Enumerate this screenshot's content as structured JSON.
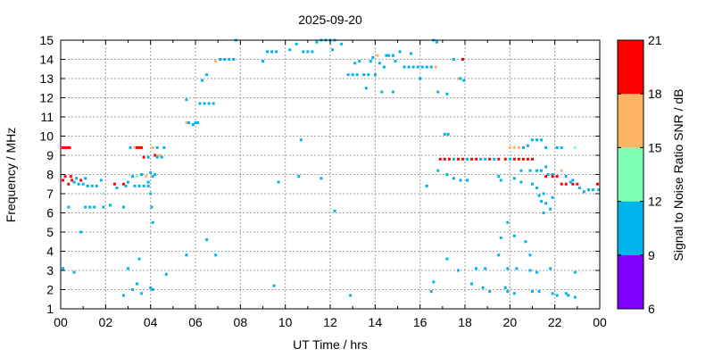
{
  "chart_data": {
    "type": "scatter",
    "title": "2025-09-20",
    "xlabel": "UT Time / hrs",
    "ylabel": "Frequency / MHz",
    "xlim": [
      0,
      24
    ],
    "ylim": [
      1,
      15
    ],
    "x_ticks": [
      "00",
      "02",
      "04",
      "06",
      "08",
      "10",
      "12",
      "14",
      "16",
      "18",
      "20",
      "22",
      "00"
    ],
    "y_ticks": [
      "1",
      "2",
      "3",
      "4",
      "5",
      "6",
      "7",
      "8",
      "9",
      "10",
      "11",
      "12",
      "13",
      "14",
      "15"
    ],
    "grid": true,
    "colorbar": {
      "label": "Signal to Noise Ratio SNR / dB",
      "ticks": [
        "6",
        "9",
        "12",
        "15",
        "18",
        "21"
      ],
      "bands": [
        {
          "min": 6,
          "max": 9,
          "color": "#8000ff"
        },
        {
          "min": 9,
          "max": 12,
          "color": "#00b4eb"
        },
        {
          "min": 12,
          "max": 15,
          "color": "#80ffb4"
        },
        {
          "min": 15,
          "max": 18,
          "color": "#ffb464"
        },
        {
          "min": 18,
          "max": 21,
          "color": "#ff0000"
        }
      ]
    },
    "point_colors": {
      "b": "#00b4eb",
      "g": "#80ffb4",
      "o": "#ffb464",
      "r": "#ff0000"
    },
    "points": [
      [
        0.1,
        3.1,
        "b"
      ],
      [
        0.6,
        2.9,
        "b"
      ],
      [
        0.9,
        5.0,
        "b"
      ],
      [
        0.35,
        6.3,
        "b"
      ],
      [
        1.1,
        6.3,
        "b"
      ],
      [
        1.3,
        6.3,
        "b"
      ],
      [
        1.5,
        6.3,
        "b"
      ],
      [
        1.9,
        6.3,
        "b"
      ],
      [
        2.2,
        6.4,
        "b"
      ],
      [
        2.8,
        6.3,
        "b"
      ],
      [
        0.1,
        7.7,
        "r"
      ],
      [
        0.2,
        7.9,
        "r"
      ],
      [
        0.35,
        7.5,
        "r"
      ],
      [
        0.5,
        7.7,
        "r"
      ],
      [
        0.6,
        7.6,
        "b"
      ],
      [
        0.7,
        7.8,
        "b"
      ],
      [
        0.8,
        7.5,
        "b"
      ],
      [
        0.9,
        7.7,
        "r"
      ],
      [
        1.0,
        7.5,
        "b"
      ],
      [
        1.1,
        7.8,
        "b"
      ],
      [
        1.2,
        7.4,
        "b"
      ],
      [
        1.4,
        7.4,
        "b"
      ],
      [
        1.6,
        7.4,
        "b"
      ],
      [
        1.8,
        7.7,
        "b"
      ],
      [
        1.9,
        7.0,
        "g"
      ],
      [
        2.4,
        7.5,
        "r"
      ],
      [
        2.5,
        7.3,
        "b"
      ],
      [
        2.8,
        7.5,
        "r"
      ],
      [
        2.9,
        7.4,
        "b"
      ],
      [
        3.0,
        7.6,
        "b"
      ],
      [
        0.1,
        9.4,
        "r"
      ],
      [
        0.2,
        9.4,
        "r"
      ],
      [
        0.3,
        9.4,
        "r"
      ],
      [
        0.4,
        9.4,
        "r"
      ],
      [
        0.45,
        7.9,
        "r"
      ],
      [
        3.1,
        9.4,
        "b"
      ],
      [
        3.3,
        9.4,
        "o"
      ],
      [
        3.4,
        9.4,
        "r"
      ],
      [
        3.5,
        9.4,
        "r"
      ],
      [
        3.6,
        9.4,
        "r"
      ],
      [
        3.7,
        8.9,
        "r"
      ],
      [
        3.9,
        8.9,
        "b"
      ],
      [
        4.1,
        9.4,
        "o"
      ],
      [
        4.3,
        9.4,
        "b"
      ],
      [
        4.2,
        9.0,
        "r"
      ],
      [
        4.3,
        8.9,
        "b"
      ],
      [
        4.4,
        9.0,
        "o"
      ],
      [
        4.5,
        8.9,
        "b"
      ],
      [
        4.6,
        9.4,
        "b"
      ],
      [
        3.2,
        7.9,
        "b"
      ],
      [
        3.4,
        7.9,
        "g"
      ],
      [
        3.6,
        8.0,
        "b"
      ],
      [
        3.8,
        7.9,
        "o"
      ],
      [
        3.9,
        7.6,
        "b"
      ],
      [
        4.0,
        8.1,
        "b"
      ],
      [
        4.1,
        7.9,
        "b"
      ],
      [
        4.2,
        8.0,
        "b"
      ],
      [
        3.3,
        7.4,
        "b"
      ],
      [
        3.5,
        7.4,
        "b"
      ],
      [
        3.7,
        7.4,
        "b"
      ],
      [
        3.9,
        7.4,
        "b"
      ],
      [
        4.0,
        7.0,
        "b"
      ],
      [
        4.05,
        6.3,
        "b"
      ],
      [
        4.1,
        5.5,
        "b"
      ],
      [
        2.8,
        1.7,
        "b"
      ],
      [
        3.0,
        3.1,
        "b"
      ],
      [
        3.2,
        2.0,
        "b"
      ],
      [
        3.4,
        2.3,
        "b"
      ],
      [
        3.6,
        1.8,
        "b"
      ],
      [
        3.5,
        3.6,
        "b"
      ],
      [
        4.0,
        2.1,
        "b"
      ],
      [
        4.1,
        2.0,
        "b"
      ],
      [
        4.7,
        2.8,
        "b"
      ],
      [
        5.6,
        3.8,
        "b"
      ],
      [
        6.5,
        4.6,
        "b"
      ],
      [
        6.9,
        3.8,
        "b"
      ],
      [
        5.6,
        11.9,
        "b"
      ],
      [
        5.6,
        10.7,
        "o"
      ],
      [
        5.7,
        10.7,
        "b"
      ],
      [
        5.9,
        10.6,
        "b"
      ],
      [
        6.0,
        10.7,
        "b"
      ],
      [
        6.1,
        10.7,
        "b"
      ],
      [
        6.2,
        11.7,
        "b"
      ],
      [
        6.4,
        11.7,
        "b"
      ],
      [
        6.6,
        11.7,
        "b"
      ],
      [
        6.8,
        11.7,
        "b"
      ],
      [
        6.3,
        12.9,
        "b"
      ],
      [
        6.5,
        13.2,
        "b"
      ],
      [
        6.9,
        13.9,
        "o"
      ],
      [
        7.1,
        14.0,
        "b"
      ],
      [
        7.3,
        14.0,
        "b"
      ],
      [
        7.5,
        14.0,
        "b"
      ],
      [
        7.7,
        14.0,
        "b"
      ],
      [
        7.8,
        15.0,
        "b"
      ],
      [
        9.0,
        13.9,
        "b"
      ],
      [
        9.2,
        14.4,
        "b"
      ],
      [
        9.4,
        14.4,
        "b"
      ],
      [
        9.6,
        14.4,
        "b"
      ],
      [
        10.2,
        14.5,
        "b"
      ],
      [
        10.5,
        14.8,
        "b"
      ],
      [
        10.8,
        14.4,
        "b"
      ],
      [
        11.0,
        14.4,
        "b"
      ],
      [
        11.2,
        14.4,
        "b"
      ],
      [
        11.4,
        14.9,
        "b"
      ],
      [
        11.6,
        15.0,
        "b"
      ],
      [
        11.8,
        15.0,
        "b"
      ],
      [
        12.0,
        15.0,
        "b"
      ],
      [
        12.2,
        15.0,
        "b"
      ],
      [
        12.1,
        14.5,
        "b"
      ],
      [
        12.5,
        14.8,
        "b"
      ],
      [
        12.8,
        13.2,
        "b"
      ],
      [
        13.0,
        13.2,
        "b"
      ],
      [
        13.2,
        13.2,
        "b"
      ],
      [
        13.1,
        13.8,
        "b"
      ],
      [
        13.3,
        13.9,
        "b"
      ],
      [
        13.5,
        13.2,
        "b"
      ],
      [
        13.6,
        12.5,
        "b"
      ],
      [
        13.7,
        13.2,
        "b"
      ],
      [
        13.8,
        13.9,
        "b"
      ],
      [
        13.9,
        14.1,
        "b"
      ],
      [
        14.0,
        13.2,
        "b"
      ],
      [
        14.1,
        14.2,
        "o"
      ],
      [
        14.2,
        13.8,
        "b"
      ],
      [
        14.4,
        13.6,
        "b"
      ],
      [
        14.5,
        14.2,
        "b"
      ],
      [
        14.6,
        14.2,
        "b"
      ],
      [
        14.8,
        14.2,
        "b"
      ],
      [
        14.9,
        13.9,
        "b"
      ],
      [
        15.1,
        14.4,
        "b"
      ],
      [
        15.3,
        13.6,
        "b"
      ],
      [
        15.5,
        13.6,
        "b"
      ],
      [
        15.7,
        13.6,
        "b"
      ],
      [
        15.9,
        13.6,
        "b"
      ],
      [
        16.1,
        13.6,
        "b"
      ],
      [
        16.3,
        13.6,
        "b"
      ],
      [
        16.5,
        13.6,
        "b"
      ],
      [
        16.7,
        13.6,
        "o"
      ],
      [
        15.6,
        14.3,
        "b"
      ],
      [
        14.3,
        12.3,
        "b"
      ],
      [
        14.8,
        12.3,
        "b"
      ],
      [
        16.0,
        13.0,
        "b"
      ],
      [
        16.8,
        12.3,
        "b"
      ],
      [
        16.6,
        15.0,
        "b"
      ],
      [
        16.75,
        14.9,
        "b"
      ],
      [
        17.5,
        14.0,
        "b"
      ],
      [
        17.7,
        13.0,
        "o"
      ],
      [
        17.8,
        13.0,
        "b"
      ],
      [
        17.9,
        14.0,
        "r"
      ],
      [
        17.95,
        12.9,
        "b"
      ],
      [
        17.2,
        12.2,
        "b"
      ],
      [
        10.7,
        9.8,
        "b"
      ],
      [
        10.6,
        7.9,
        "b"
      ],
      [
        9.7,
        7.6,
        "b"
      ],
      [
        11.6,
        7.8,
        "b"
      ],
      [
        12.2,
        6.1,
        "b"
      ],
      [
        12.9,
        1.7,
        "b"
      ],
      [
        9.5,
        2.2,
        "b"
      ],
      [
        16.3,
        7.4,
        "b"
      ],
      [
        16.8,
        8.2,
        "b"
      ],
      [
        16.9,
        8.8,
        "r"
      ],
      [
        17.1,
        8.8,
        "r"
      ],
      [
        17.3,
        8.8,
        "r"
      ],
      [
        17.5,
        8.8,
        "b"
      ],
      [
        17.7,
        8.8,
        "r"
      ],
      [
        17.9,
        8.8,
        "r"
      ],
      [
        18.1,
        8.8,
        "b"
      ],
      [
        18.3,
        8.8,
        "r"
      ],
      [
        18.5,
        8.8,
        "r"
      ],
      [
        18.7,
        8.8,
        "b"
      ],
      [
        18.9,
        8.8,
        "b"
      ],
      [
        19.1,
        8.8,
        "r"
      ],
      [
        19.3,
        8.8,
        "b"
      ],
      [
        19.5,
        8.8,
        "r"
      ],
      [
        17.1,
        10.1,
        "b"
      ],
      [
        17.25,
        10.1,
        "b"
      ],
      [
        17.2,
        8.0,
        "b"
      ],
      [
        17.5,
        7.8,
        "b"
      ],
      [
        17.8,
        7.7,
        "b"
      ],
      [
        18.1,
        7.7,
        "b"
      ],
      [
        19.6,
        7.7,
        "b"
      ],
      [
        20.0,
        9.4,
        "o"
      ],
      [
        20.2,
        9.4,
        "o"
      ],
      [
        20.4,
        9.4,
        "o"
      ],
      [
        20.6,
        9.4,
        "b"
      ],
      [
        20.8,
        9.5,
        "b"
      ],
      [
        21.0,
        9.8,
        "b"
      ],
      [
        21.2,
        9.8,
        "b"
      ],
      [
        21.4,
        9.8,
        "b"
      ],
      [
        21.6,
        9.4,
        "b"
      ],
      [
        22.1,
        9.4,
        "b"
      ],
      [
        22.3,
        9.4,
        "b"
      ],
      [
        22.9,
        9.4,
        "g"
      ],
      [
        19.8,
        8.8,
        "r"
      ],
      [
        20.0,
        8.8,
        "b"
      ],
      [
        20.2,
        8.8,
        "r"
      ],
      [
        20.4,
        8.8,
        "r"
      ],
      [
        20.6,
        8.8,
        "r"
      ],
      [
        20.8,
        8.8,
        "r"
      ],
      [
        21.0,
        8.8,
        "r"
      ],
      [
        20.5,
        8.2,
        "b"
      ],
      [
        20.9,
        8.2,
        "b"
      ],
      [
        21.2,
        8.2,
        "b"
      ],
      [
        21.4,
        8.2,
        "b"
      ],
      [
        21.6,
        8.4,
        "b"
      ],
      [
        21.7,
        8.0,
        "b"
      ],
      [
        21.9,
        8.0,
        "b"
      ],
      [
        21.6,
        7.9,
        "r"
      ],
      [
        21.9,
        7.9,
        "r"
      ],
      [
        22.1,
        7.9,
        "r"
      ],
      [
        22.3,
        8.2,
        "o"
      ],
      [
        22.5,
        7.9,
        "b"
      ],
      [
        22.8,
        7.7,
        "b"
      ],
      [
        22.3,
        7.5,
        "r"
      ],
      [
        22.5,
        7.5,
        "r"
      ],
      [
        22.8,
        7.5,
        "r"
      ],
      [
        23.0,
        7.5,
        "r"
      ],
      [
        23.1,
        7.3,
        "b"
      ],
      [
        23.3,
        7.1,
        "b"
      ],
      [
        23.5,
        7.2,
        "b"
      ],
      [
        23.7,
        7.2,
        "b"
      ],
      [
        23.9,
        7.5,
        "r"
      ],
      [
        23.95,
        7.2,
        "b"
      ],
      [
        22.7,
        7.6,
        "b"
      ],
      [
        21.5,
        7.0,
        "b"
      ],
      [
        21.2,
        7.3,
        "b"
      ],
      [
        21.0,
        7.5,
        "b"
      ],
      [
        21.3,
        6.9,
        "b"
      ],
      [
        21.4,
        6.6,
        "b"
      ],
      [
        21.5,
        6.0,
        "b"
      ],
      [
        21.6,
        6.5,
        "b"
      ],
      [
        21.8,
        6.2,
        "b"
      ],
      [
        21.9,
        6.8,
        "b"
      ],
      [
        20.2,
        7.8,
        "b"
      ],
      [
        20.5,
        7.6,
        "b"
      ],
      [
        19.5,
        7.9,
        "b"
      ],
      [
        19.9,
        5.5,
        "b"
      ],
      [
        19.6,
        4.7,
        "b"
      ],
      [
        20.2,
        4.8,
        "b"
      ],
      [
        20.7,
        4.5,
        "b"
      ],
      [
        20.9,
        3.8,
        "b"
      ],
      [
        19.5,
        3.8,
        "b"
      ],
      [
        18.9,
        3.1,
        "b"
      ],
      [
        18.5,
        3.1,
        "b"
      ],
      [
        19.9,
        3.1,
        "b"
      ],
      [
        20.3,
        3.1,
        "b"
      ],
      [
        20.9,
        3.0,
        "b"
      ],
      [
        21.2,
        2.9,
        "b"
      ],
      [
        21.8,
        3.1,
        "b"
      ],
      [
        21.9,
        1.8,
        "b"
      ],
      [
        22.1,
        1.7,
        "b"
      ],
      [
        22.6,
        1.7,
        "b"
      ],
      [
        22.9,
        1.6,
        "b"
      ],
      [
        22.9,
        2.9,
        "b"
      ],
      [
        19.8,
        2.1,
        "b"
      ],
      [
        19.9,
        1.9,
        "b"
      ],
      [
        20.2,
        1.8,
        "b"
      ],
      [
        21.0,
        1.9,
        "b"
      ],
      [
        21.3,
        1.9,
        "b"
      ],
      [
        19.1,
        1.9,
        "b"
      ],
      [
        18.8,
        2.1,
        "b"
      ],
      [
        18.3,
        2.3,
        "b"
      ],
      [
        17.2,
        3.6,
        "b"
      ],
      [
        17.7,
        3.0,
        "b"
      ],
      [
        16.6,
        2.4,
        "b"
      ],
      [
        16.5,
        1.9,
        "b"
      ],
      [
        22.5,
        1.8,
        "b"
      ]
    ]
  }
}
